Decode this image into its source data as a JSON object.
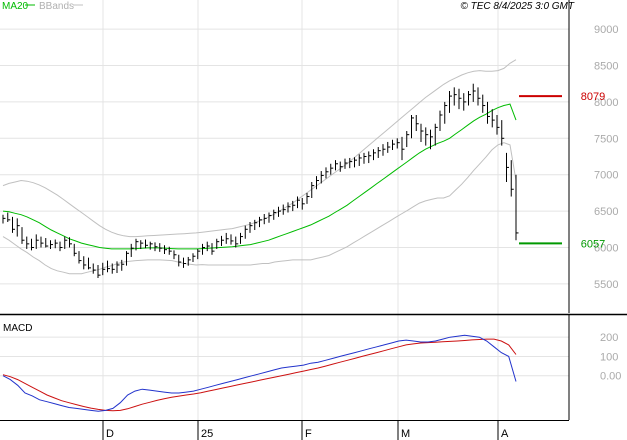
{
  "header": {
    "legend_ma": "MA20",
    "legend_bb": "BBands",
    "source": "© TEC 8/4/2025 3:0 GMT"
  },
  "colors": {
    "price": "#000000",
    "ma20": "#00bb00",
    "bbands": "#c0c0c0",
    "resistance": "#cc0000",
    "support": "#009900",
    "macd": "#2233cc",
    "signal": "#cc1111",
    "grid": "#e4e4e4",
    "axis_label": "#aaaaaa"
  },
  "chart_data": [
    {
      "type": "ohlc",
      "title": "",
      "x_tick_labels": [
        "D",
        "25",
        "F",
        "M",
        "A"
      ],
      "y_ticks": [
        5500,
        6000,
        6500,
        7000,
        7500,
        8000,
        8500,
        9000
      ],
      "ylim": [
        5100,
        9400
      ],
      "grid": true,
      "levels": [
        {
          "name": "resistance",
          "value": 8079,
          "label": "8079"
        },
        {
          "name": "support",
          "value": 6057,
          "label": "6057"
        }
      ],
      "series": [
        {
          "name": "price",
          "style": "bar",
          "bars": [
            [
              6450,
              6330,
              6400
            ],
            [
              6480,
              6350,
              6380
            ],
            [
              6420,
              6200,
              6250
            ],
            [
              6400,
              6150,
              6300
            ],
            [
              6280,
              6050,
              6100
            ],
            [
              6150,
              5980,
              6050
            ],
            [
              6120,
              5960,
              6000
            ],
            [
              6180,
              5980,
              6100
            ],
            [
              6150,
              6000,
              6060
            ],
            [
              6130,
              6000,
              6020
            ],
            [
              6100,
              5980,
              6040
            ],
            [
              6110,
              5990,
              6060
            ],
            [
              6080,
              5950,
              6000
            ],
            [
              6150,
              5980,
              6100
            ],
            [
              6140,
              6000,
              6050
            ],
            [
              6050,
              5880,
              5920
            ],
            [
              5950,
              5780,
              5820
            ],
            [
              5880,
              5700,
              5760
            ],
            [
              5860,
              5700,
              5720
            ],
            [
              5780,
              5640,
              5690
            ],
            [
              5760,
              5580,
              5620
            ],
            [
              5790,
              5620,
              5700
            ],
            [
              5820,
              5660,
              5710
            ],
            [
              5780,
              5640,
              5700
            ],
            [
              5810,
              5650,
              5760
            ],
            [
              5830,
              5680,
              5770
            ],
            [
              5950,
              5750,
              5920
            ],
            [
              6050,
              5870,
              5990
            ],
            [
              6120,
              5960,
              6080
            ],
            [
              6100,
              5980,
              6060
            ],
            [
              6110,
              5990,
              6030
            ],
            [
              6080,
              5970,
              6050
            ],
            [
              6070,
              5950,
              6010
            ],
            [
              6060,
              5940,
              5990
            ],
            [
              6030,
              5910,
              5970
            ],
            [
              6010,
              5900,
              5950
            ],
            [
              5960,
              5840,
              5900
            ],
            [
              5900,
              5740,
              5800
            ],
            [
              5860,
              5720,
              5780
            ],
            [
              5870,
              5750,
              5830
            ],
            [
              5920,
              5800,
              5880
            ],
            [
              5980,
              5840,
              5950
            ],
            [
              6050,
              5900,
              6000
            ],
            [
              6080,
              5950,
              6020
            ],
            [
              6060,
              5900,
              5950
            ],
            [
              6120,
              5980,
              6080
            ],
            [
              6160,
              6020,
              6100
            ],
            [
              6200,
              6050,
              6120
            ],
            [
              6180,
              6040,
              6090
            ],
            [
              6150,
              6000,
              6050
            ],
            [
              6200,
              6050,
              6150
            ],
            [
              6300,
              6120,
              6250
            ],
            [
              6350,
              6200,
              6300
            ],
            [
              6380,
              6240,
              6340
            ],
            [
              6420,
              6280,
              6380
            ],
            [
              6460,
              6320,
              6400
            ],
            [
              6480,
              6340,
              6440
            ],
            [
              6520,
              6380,
              6480
            ],
            [
              6560,
              6420,
              6500
            ],
            [
              6590,
              6450,
              6520
            ],
            [
              6620,
              6480,
              6560
            ],
            [
              6640,
              6500,
              6580
            ],
            [
              6700,
              6540,
              6650
            ],
            [
              6680,
              6520,
              6600
            ],
            [
              6750,
              6600,
              6700
            ],
            [
              6900,
              6680,
              6850
            ],
            [
              6980,
              6800,
              6920
            ],
            [
              7050,
              6880,
              6990
            ],
            [
              7100,
              6950,
              7040
            ],
            [
              7150,
              7000,
              7090
            ],
            [
              7200,
              7060,
              7150
            ],
            [
              7180,
              7040,
              7110
            ],
            [
              7220,
              7080,
              7160
            ],
            [
              7230,
              7090,
              7180
            ],
            [
              7240,
              7100,
              7200
            ],
            [
              7280,
              7120,
              7230
            ],
            [
              7300,
              7150,
              7250
            ],
            [
              7320,
              7160,
              7260
            ],
            [
              7350,
              7200,
              7300
            ],
            [
              7380,
              7230,
              7330
            ],
            [
              7420,
              7260,
              7350
            ],
            [
              7450,
              7300,
              7380
            ],
            [
              7480,
              7340,
              7420
            ],
            [
              7500,
              7360,
              7440
            ],
            [
              7520,
              7200,
              7350
            ],
            [
              7600,
              7380,
              7550
            ],
            [
              7820,
              7500,
              7780
            ],
            [
              7820,
              7600,
              7700
            ],
            [
              7700,
              7450,
              7600
            ],
            [
              7650,
              7400,
              7550
            ],
            [
              7620,
              7350,
              7520
            ],
            [
              7700,
              7400,
              7650
            ],
            [
              7880,
              7600,
              7820
            ],
            [
              8000,
              7700,
              7950
            ],
            [
              8150,
              7850,
              8080
            ],
            [
              8200,
              7950,
              8100
            ],
            [
              8180,
              7900,
              8050
            ],
            [
              8120,
              7880,
              8000
            ],
            [
              8150,
              7950,
              8100
            ],
            [
              8250,
              8000,
              8150
            ],
            [
              8200,
              7950,
              8050
            ],
            [
              8100,
              7850,
              7950
            ],
            [
              8000,
              7700,
              7800
            ],
            [
              7900,
              7650,
              7750
            ],
            [
              7820,
              7550,
              7650
            ],
            [
              7750,
              7400,
              7500
            ],
            [
              7300,
              6900,
              7100
            ],
            [
              7200,
              6700,
              6800
            ],
            [
              7000,
              6100,
              6200
            ]
          ]
        },
        {
          "name": "MA20",
          "style": "line",
          "values": [
            6500,
            6490,
            6470,
            6450,
            6420,
            6380,
            6340,
            6290,
            6240,
            6200,
            6160,
            6120,
            6090,
            6060,
            6040,
            6020,
            6000,
            5990,
            5980,
            5980,
            5980,
            5980,
            5985,
            5990,
            5995,
            5995,
            5995,
            5990,
            5985,
            5980,
            5980,
            5980,
            5980,
            5985,
            5990,
            5995,
            6000,
            6005,
            6010,
            6020,
            6030,
            6040,
            6060,
            6080,
            6100,
            6130,
            6160,
            6190,
            6220,
            6250,
            6280,
            6310,
            6350,
            6390,
            6430,
            6480,
            6530,
            6580,
            6640,
            6700,
            6760,
            6820,
            6880,
            6940,
            7000,
            7060,
            7120,
            7180,
            7240,
            7300,
            7350,
            7390,
            7430,
            7460,
            7500,
            7560,
            7620,
            7680,
            7740,
            7790,
            7830,
            7880,
            7920,
            7950,
            7970,
            7750
          ]
        },
        {
          "name": "BB upper",
          "style": "line",
          "values": [
            6850,
            6880,
            6900,
            6920,
            6910,
            6890,
            6860,
            6820,
            6770,
            6720,
            6660,
            6600,
            6540,
            6480,
            6420,
            6360,
            6300,
            6250,
            6210,
            6180,
            6160,
            6150,
            6150,
            6155,
            6160,
            6165,
            6170,
            6175,
            6180,
            6185,
            6190,
            6195,
            6200,
            6210,
            6220,
            6230,
            6240,
            6250,
            6260,
            6280,
            6300,
            6320,
            6350,
            6380,
            6420,
            6460,
            6510,
            6560,
            6610,
            6670,
            6730,
            6790,
            6850,
            6910,
            6970,
            7030,
            7090,
            7150,
            7220,
            7290,
            7360,
            7430,
            7500,
            7570,
            7640,
            7710,
            7780,
            7850,
            7920,
            7990,
            8060,
            8120,
            8180,
            8240,
            8290,
            8330,
            8370,
            8400,
            8420,
            8430,
            8420,
            8420,
            8430,
            8460,
            8530,
            8580
          ]
        },
        {
          "name": "BB lower",
          "style": "line",
          "values": [
            6150,
            6100,
            6040,
            5980,
            5930,
            5870,
            5820,
            5760,
            5710,
            5680,
            5660,
            5640,
            5640,
            5640,
            5660,
            5680,
            5700,
            5730,
            5750,
            5780,
            5800,
            5810,
            5820,
            5825,
            5830,
            5830,
            5830,
            5825,
            5820,
            5800,
            5780,
            5770,
            5760,
            5765,
            5760,
            5760,
            5760,
            5760,
            5760,
            5760,
            5760,
            5760,
            5770,
            5780,
            5780,
            5800,
            5810,
            5820,
            5830,
            5830,
            5830,
            5830,
            5850,
            5870,
            5890,
            5930,
            5970,
            6010,
            6060,
            6110,
            6160,
            6210,
            6260,
            6310,
            6360,
            6410,
            6460,
            6510,
            6560,
            6610,
            6640,
            6660,
            6680,
            6680,
            6710,
            6790,
            6870,
            6960,
            7060,
            7150,
            7240,
            7340,
            7410,
            7440,
            7410,
            6920
          ]
        }
      ]
    },
    {
      "type": "line",
      "title": "MACD",
      "y_ticks": [
        0,
        100,
        200
      ],
      "y_tick_labels": [
        "0.00",
        "100",
        "200"
      ],
      "ylim": [
        -230,
        310
      ],
      "grid": true,
      "series": [
        {
          "name": "MACD",
          "values": [
            0,
            -20,
            -50,
            -90,
            -105,
            -125,
            -135,
            -145,
            -155,
            -165,
            -170,
            -175,
            -180,
            -185,
            -180,
            -170,
            -140,
            -100,
            -80,
            -70,
            -75,
            -80,
            -85,
            -90,
            -90,
            -85,
            -80,
            -70,
            -60,
            -50,
            -40,
            -30,
            -20,
            -10,
            0,
            10,
            20,
            30,
            40,
            45,
            50,
            55,
            65,
            70,
            80,
            90,
            100,
            110,
            120,
            130,
            140,
            150,
            160,
            170,
            180,
            185,
            180,
            175,
            175,
            180,
            190,
            200,
            205,
            210,
            205,
            200,
            180,
            150,
            120,
            100,
            -30
          ]
        },
        {
          "name": "Signal",
          "values": [
            5,
            -5,
            -20,
            -40,
            -60,
            -80,
            -100,
            -115,
            -130,
            -140,
            -150,
            -160,
            -168,
            -175,
            -180,
            -182,
            -180,
            -172,
            -160,
            -148,
            -138,
            -128,
            -120,
            -112,
            -106,
            -100,
            -95,
            -88,
            -80,
            -72,
            -64,
            -56,
            -48,
            -40,
            -32,
            -24,
            -16,
            -8,
            0,
            8,
            16,
            24,
            32,
            40,
            50,
            60,
            70,
            80,
            90,
            100,
            110,
            120,
            130,
            140,
            150,
            160,
            165,
            170,
            172,
            174,
            176,
            178,
            180,
            183,
            186,
            188,
            190,
            190,
            180,
            160,
            110
          ]
        }
      ]
    }
  ]
}
